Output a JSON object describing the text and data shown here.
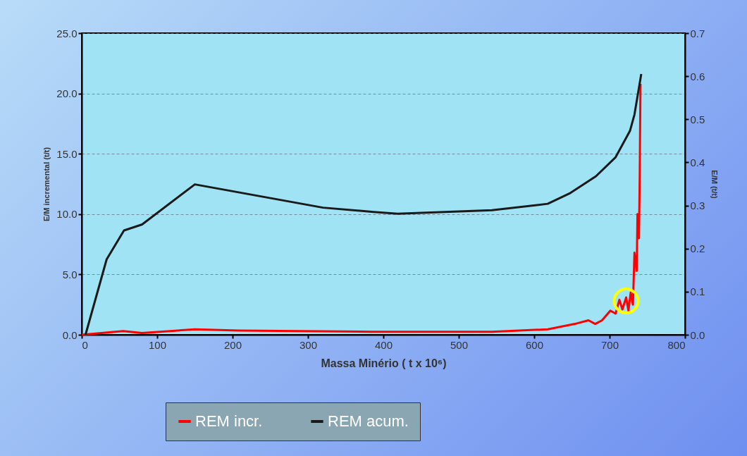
{
  "chart_data": {
    "type": "line",
    "xlabel": "Massa Minério ( t x 10⁶)",
    "ylabel": "E/M incremental (t/t)",
    "y2label": "E/M (t/t)",
    "series": [
      {
        "name": "REM incr.",
        "color": "#ff0000",
        "x": [
          0,
          55,
          80,
          150,
          208,
          385,
          544,
          618,
          654,
          672,
          681,
          690,
          701,
          708,
          713,
          717,
          722,
          725,
          728,
          731,
          733,
          736,
          737,
          739,
          740,
          741
        ],
        "values": [
          0,
          0.3,
          0.15,
          0.45,
          0.35,
          0.25,
          0.25,
          0.45,
          0.9,
          1.2,
          0.9,
          1.2,
          2.0,
          1.75,
          2.9,
          2.1,
          3.1,
          2.0,
          3.5,
          2.5,
          6.8,
          5.3,
          10,
          8,
          13.3,
          20.8
        ]
      },
      {
        "name": "REM acum.",
        "color": "#1a1a1a",
        "axis": "y2",
        "x": [
          5,
          33,
          56,
          80,
          150,
          320,
          387,
          419,
          544,
          618,
          648,
          682,
          708,
          727,
          733,
          742
        ],
        "values": [
          0,
          0.175,
          0.242,
          0.256,
          0.349,
          0.295,
          0.285,
          0.281,
          0.289,
          0.304,
          0.329,
          0.368,
          0.412,
          0.473,
          0.511,
          0.605
        ]
      }
    ],
    "xlim": [
      0,
      800
    ],
    "xticks": [
      0,
      100,
      200,
      300,
      400,
      500,
      600,
      700,
      800
    ],
    "ylim": [
      0,
      25
    ],
    "yticks": [
      {
        "value": 0,
        "label": "0.0"
      },
      {
        "value": 5,
        "label": "5.0"
      },
      {
        "value": 10,
        "label": "10.0"
      },
      {
        "value": 15,
        "label": "15.0"
      },
      {
        "value": 20,
        "label": "20.0"
      },
      {
        "value": 25,
        "label": "25.0"
      }
    ],
    "y2lim": [
      0,
      0.7
    ],
    "y2ticks": [
      {
        "value": 0,
        "label": "0.0"
      },
      0.1,
      0.2,
      0.3,
      0.4,
      0.5,
      0.6,
      0.7
    ],
    "grid": "y",
    "legend": "bottom",
    "line_style": "solid",
    "marker": "none"
  }
}
